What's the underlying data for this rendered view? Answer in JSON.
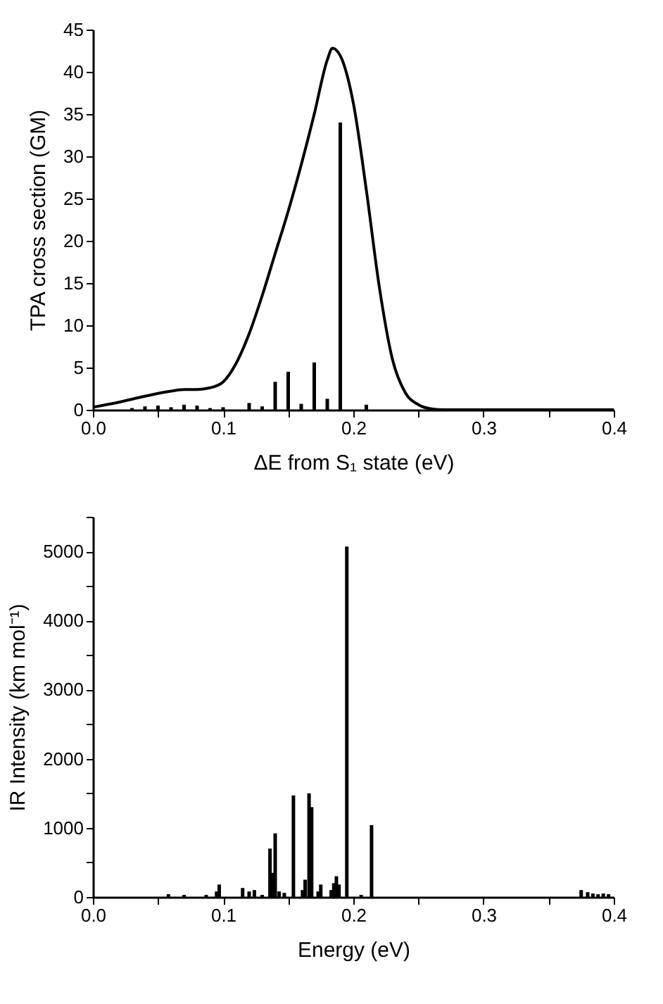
{
  "chart_data": [
    {
      "type": "line",
      "xlabel": "ΔE  from S₁ state (eV)",
      "ylabel": "TPA cross section (GM)",
      "xlim": [
        0,
        0.4
      ],
      "ylim": [
        0,
        45
      ],
      "xticks": [
        {
          "value": 0,
          "label": "0.0"
        },
        {
          "value": 0.05,
          "label": null
        },
        {
          "value": 0.1,
          "label": "0.1"
        },
        {
          "value": 0.15,
          "label": null
        },
        {
          "value": 0.2,
          "label": "0.2"
        },
        {
          "value": 0.25,
          "label": null
        },
        {
          "value": 0.3,
          "label": "0.3"
        },
        {
          "value": 0.35,
          "label": null
        },
        {
          "value": 0.4,
          "label": "0.4"
        }
      ],
      "yticks": [
        0,
        5,
        10,
        15,
        20,
        25,
        30,
        35,
        40,
        45
      ],
      "grid": false,
      "series": [
        {
          "color": "#000000",
          "x": [
            0,
            0.02,
            0.04,
            0.06,
            0.07,
            0.08,
            0.09,
            0.1,
            0.11,
            0.12,
            0.13,
            0.14,
            0.15,
            0.16,
            0.17,
            0.18,
            0.184,
            0.19,
            0.2,
            0.21,
            0.22,
            0.23,
            0.24,
            0.25,
            0.26,
            0.27,
            0.3,
            0.4
          ],
          "values": [
            0.3,
            0.9,
            1.6,
            2.2,
            2.4,
            2.4,
            2.6,
            3.3,
            5.5,
            9,
            13.5,
            18.5,
            23.5,
            29,
            35,
            41.4,
            42.8,
            41.9,
            36.3,
            26,
            14.5,
            6,
            2,
            0.6,
            0.1,
            0,
            0,
            0
          ]
        },
        {
          "type": "bar",
          "color": "#000000",
          "x": [
            0.03,
            0.04,
            0.05,
            0.06,
            0.07,
            0.08,
            0.09,
            0.1,
            0.12,
            0.13,
            0.14,
            0.15,
            0.16,
            0.17,
            0.18,
            0.19,
            0.21
          ],
          "values": [
            0.2,
            0.4,
            0.5,
            0.3,
            0.6,
            0.5,
            0.2,
            0.3,
            0.8,
            0.4,
            3.3,
            4.5,
            0.7,
            5.6,
            1.3,
            34,
            0.6
          ]
        }
      ]
    },
    {
      "type": "bar",
      "xlabel": "Energy (eV)",
      "ylabel": "IR Intensity (km mol⁻¹)",
      "xlim": [
        0,
        0.4
      ],
      "ylim": [
        0,
        5500
      ],
      "xticks": [
        {
          "value": 0,
          "label": "0.0"
        },
        {
          "value": 0.05,
          "label": null
        },
        {
          "value": 0.1,
          "label": "0.1"
        },
        {
          "value": 0.15,
          "label": null
        },
        {
          "value": 0.2,
          "label": "0.2"
        },
        {
          "value": 0.25,
          "label": null
        },
        {
          "value": 0.3,
          "label": "0.3"
        },
        {
          "value": 0.35,
          "label": null
        },
        {
          "value": 0.4,
          "label": "0.4"
        }
      ],
      "yticks": [
        0,
        {
          "value": 500,
          "label": null
        },
        1000,
        {
          "value": 1500,
          "label": null
        },
        2000,
        {
          "value": 2500,
          "label": null
        },
        3000,
        {
          "value": 3500,
          "label": null
        },
        4000,
        {
          "value": 4500,
          "label": null
        },
        5000,
        {
          "value": 5500,
          "label": null
        }
      ],
      "grid": false,
      "series": [
        {
          "color": "#000000",
          "x": [
            0.058,
            0.07,
            0.087,
            0.095,
            0.097,
            0.115,
            0.12,
            0.124,
            0.13,
            0.136,
            0.138,
            0.14,
            0.143,
            0.147,
            0.154,
            0.161,
            0.163,
            0.166,
            0.168,
            0.173,
            0.175,
            0.183,
            0.185,
            0.187,
            0.189,
            0.195,
            0.206,
            0.214,
            0.375,
            0.38,
            0.384,
            0.388,
            0.392,
            0.396
          ],
          "values": [
            40,
            30,
            30,
            80,
            180,
            130,
            80,
            100,
            30,
            700,
            350,
            920,
            80,
            60,
            1470,
            100,
            250,
            1500,
            1300,
            80,
            180,
            100,
            200,
            300,
            180,
            5070,
            30,
            1040,
            100,
            70,
            50,
            40,
            50,
            40
          ]
        }
      ]
    }
  ]
}
